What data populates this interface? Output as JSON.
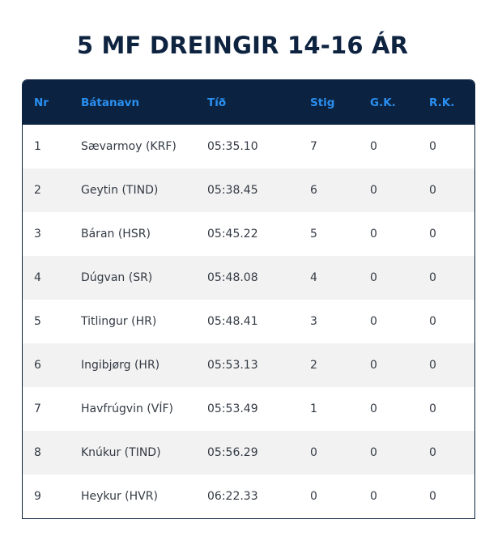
{
  "title": "5 MF DREINGIR 14-16 ÁR",
  "headers": {
    "nr": "Nr",
    "boat": "Bátanavn",
    "time": "Tíð",
    "points": "Stig",
    "gk": "G.K.",
    "rk": "R.K."
  },
  "rows": [
    {
      "nr": "1",
      "boat": "Sævarmoy (KRF)",
      "time": "05:35.10",
      "points": "7",
      "gk": "0",
      "rk": "0"
    },
    {
      "nr": "2",
      "boat": "Geytin (TIND)",
      "time": "05:38.45",
      "points": "6",
      "gk": "0",
      "rk": "0"
    },
    {
      "nr": "3",
      "boat": "Báran (HSR)",
      "time": "05:45.22",
      "points": "5",
      "gk": "0",
      "rk": "0"
    },
    {
      "nr": "4",
      "boat": "Dúgvan (SR)",
      "time": "05:48.08",
      "points": "4",
      "gk": "0",
      "rk": "0"
    },
    {
      "nr": "5",
      "boat": "Titlingur (HR)",
      "time": "05:48.41",
      "points": "3",
      "gk": "0",
      "rk": "0"
    },
    {
      "nr": "6",
      "boat": "Ingibjørg (HR)",
      "time": "05:53.13",
      "points": "2",
      "gk": "0",
      "rk": "0"
    },
    {
      "nr": "7",
      "boat": "Havfrúgvin (VÍF)",
      "time": "05:53.49",
      "points": "1",
      "gk": "0",
      "rk": "0"
    },
    {
      "nr": "8",
      "boat": "Knúkur (TIND)",
      "time": "05:56.29",
      "points": "0",
      "gk": "0",
      "rk": "0"
    },
    {
      "nr": "9",
      "boat": "Heykur (HVR)",
      "time": "06:22.33",
      "points": "0",
      "gk": "0",
      "rk": "0"
    }
  ]
}
